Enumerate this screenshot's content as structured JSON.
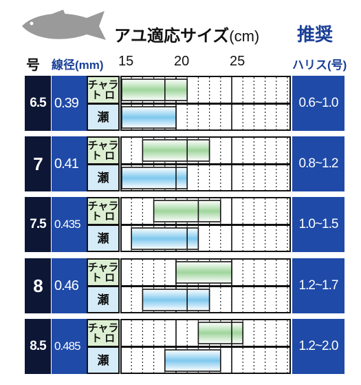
{
  "header": {
    "title": "アユ適応サイズ",
    "unit": "(cm)",
    "recommend": "推奨",
    "col_number": "号",
    "col_diameter": "線径(mm)",
    "col_line": "ハリス(号)"
  },
  "colors": {
    "number_bg": "#0d1635",
    "blue_cell": "#1f4aa8",
    "chara_bar": "#9fd59c",
    "se_bar": "#7ec8ee",
    "fish": "#9a9a9a"
  },
  "chart_data": {
    "type": "bar",
    "orientation": "horizontal-range",
    "x_ticks": [
      15,
      20,
      25
    ],
    "xlim": [
      14.5,
      29.5
    ],
    "grid": "dotted every 1cm, solid every 5cm",
    "rows": [
      {
        "number": "6.5",
        "diameter": "0.39",
        "line": "0.6~1.0",
        "bars": [
          {
            "type": "チャラ\nト ロ",
            "from": 14.5,
            "to": 20.5,
            "mark": 18.5
          },
          {
            "type": "瀬",
            "from": 14.5,
            "to": 19.5,
            "mark": null
          }
        ]
      },
      {
        "number": "7",
        "diameter": "0.41",
        "line": "0.8~1.2",
        "bars": [
          {
            "type": "チャラ\nト ロ",
            "from": 16.5,
            "to": 22.5,
            "mark": 20.5
          },
          {
            "type": "瀬",
            "from": 14.5,
            "to": 20.5,
            "mark": 19.5
          }
        ]
      },
      {
        "number": "7.5",
        "diameter": "0.435",
        "line": "1.0~1.5",
        "bars": [
          {
            "type": "チャラ\nト ロ",
            "from": 17.5,
            "to": 23.5,
            "mark": 21.5
          },
          {
            "type": "瀬",
            "from": 15.5,
            "to": 21.5,
            "mark": 20.5
          }
        ]
      },
      {
        "number": "8",
        "diameter": "0.46",
        "line": "1.2~1.7",
        "bars": [
          {
            "type": "チャラ\nト ロ",
            "from": 19.5,
            "to": 24.5,
            "mark": null
          },
          {
            "type": "瀬",
            "from": 16.5,
            "to": 22.5,
            "mark": 20.5
          }
        ]
      },
      {
        "number": "8.5",
        "diameter": "0.485",
        "line": "1.2~2.0",
        "bars": [
          {
            "type": "チャラ\nト ロ",
            "from": 21.5,
            "to": 25.5,
            "mark": 24.5
          },
          {
            "type": "瀬",
            "from": 18.5,
            "to": 23.5,
            "mark": null
          }
        ]
      }
    ]
  }
}
